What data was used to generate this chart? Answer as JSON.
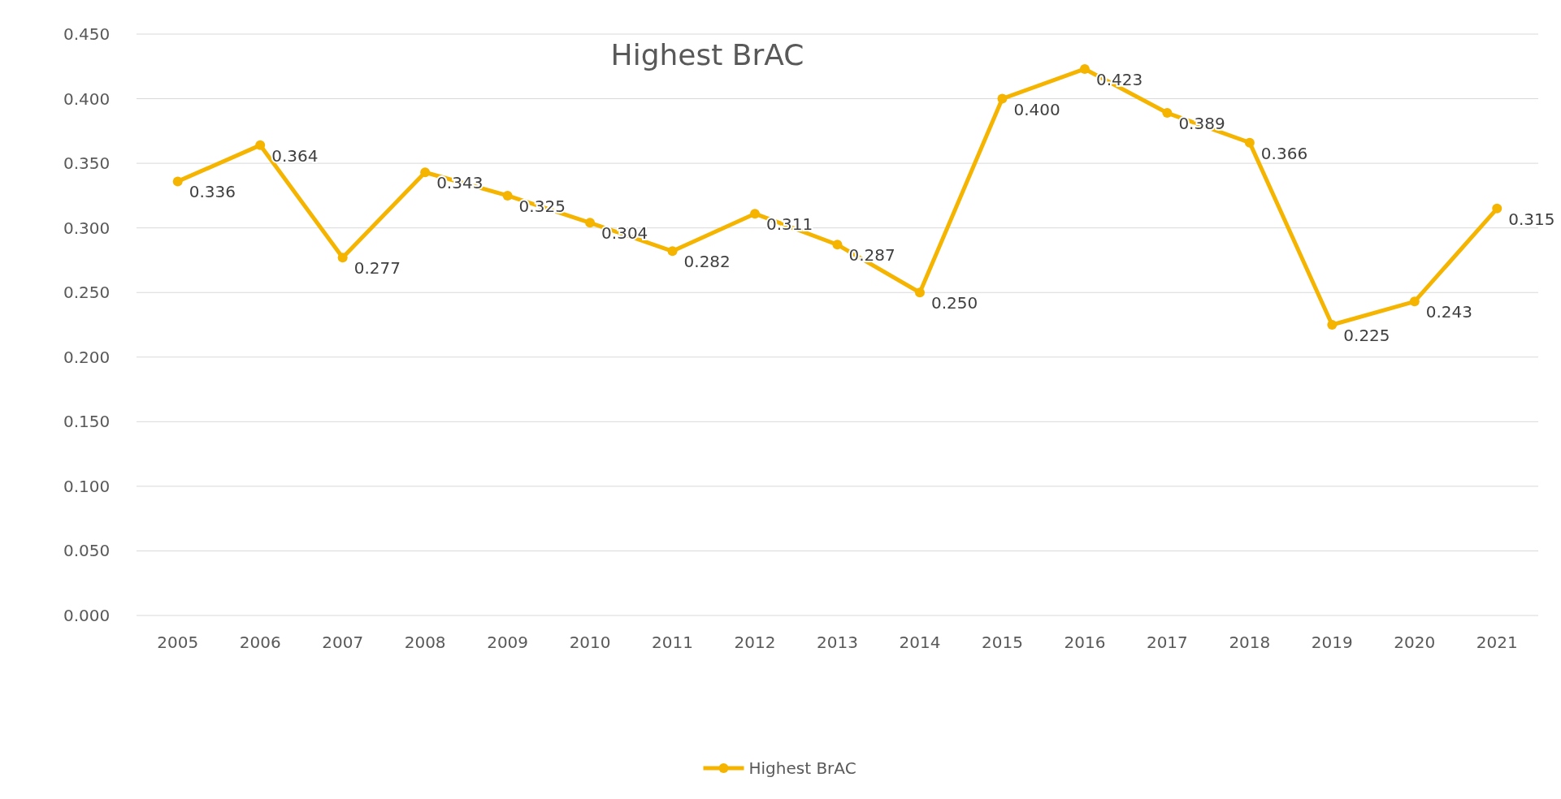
{
  "chart_data": {
    "type": "line",
    "title": "Highest BrAC",
    "categories": [
      "2005",
      "2006",
      "2007",
      "2008",
      "2009",
      "2010",
      "2011",
      "2012",
      "2013",
      "2014",
      "2015",
      "2016",
      "2017",
      "2018",
      "2019",
      "2020",
      "2021"
    ],
    "series": [
      {
        "name": "Highest BrAC",
        "color": "#f4b400",
        "values": [
          0.336,
          0.364,
          0.277,
          0.343,
          0.325,
          0.304,
          0.282,
          0.311,
          0.287,
          0.25,
          0.4,
          0.423,
          0.389,
          0.366,
          0.225,
          0.243,
          0.315
        ],
        "value_labels": [
          "0.336",
          "0.364",
          "0.277",
          "0.343",
          "0.325",
          "0.304",
          "0.282",
          "0.311",
          "0.287",
          "0.250",
          "0.400",
          "0.423",
          "0.389",
          "0.366",
          "0.225",
          "0.243",
          "0.315"
        ]
      }
    ],
    "ylim": [
      0,
      0.45
    ],
    "yticks": [
      {
        "value": 0,
        "label": "0.000"
      },
      {
        "value": 0.05,
        "label": "0.050"
      },
      {
        "value": 0.1,
        "label": "0.100"
      },
      {
        "value": 0.15,
        "label": "0.150"
      },
      {
        "value": 0.2,
        "label": "0.200"
      },
      {
        "value": 0.25,
        "label": "0.250"
      },
      {
        "value": 0.3,
        "label": "0.300"
      },
      {
        "value": 0.35,
        "label": "0.350"
      },
      {
        "value": 0.4,
        "label": "0.400"
      },
      {
        "value": 0.45,
        "label": "0.450"
      }
    ],
    "grid": "y",
    "legend": "bottom",
    "marker": "circle",
    "line_style": "solid"
  }
}
